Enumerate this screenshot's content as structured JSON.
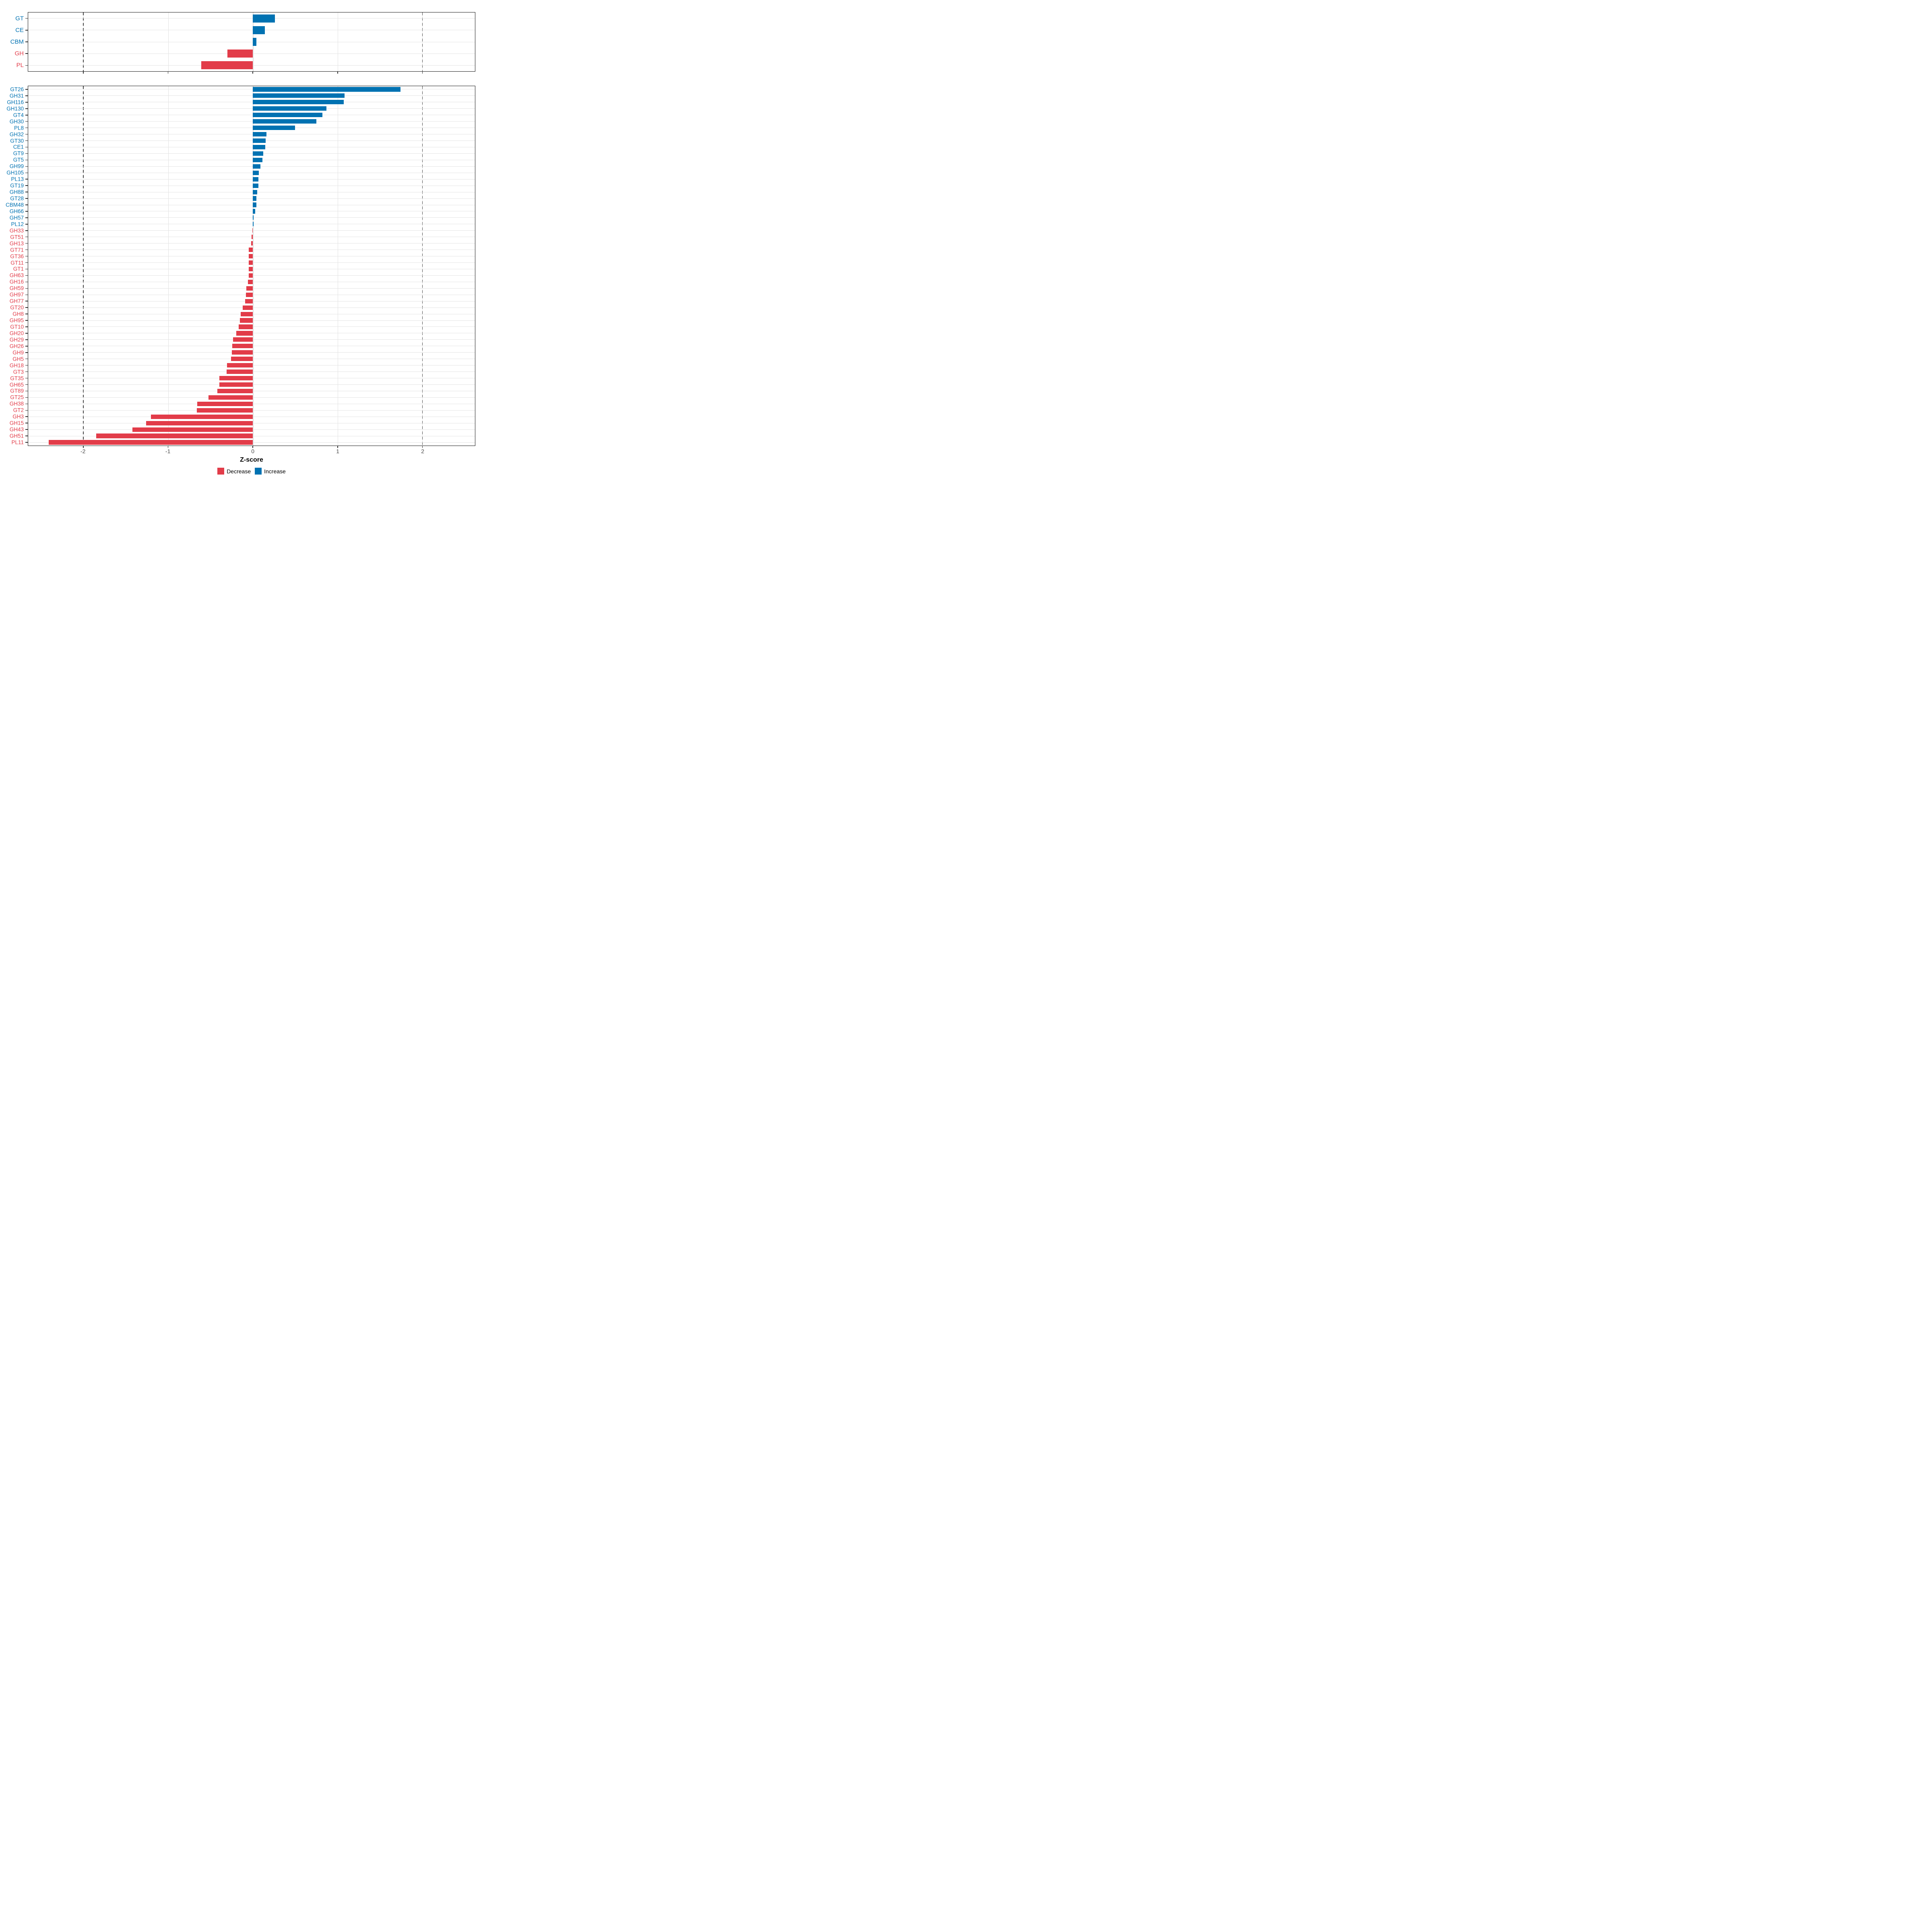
{
  "chart_data": [
    {
      "id": "summary",
      "type": "bar",
      "orientation": "horizontal",
      "title": "",
      "categories": [
        "GT",
        "CE",
        "CBM",
        "GH",
        "PL"
      ],
      "values": [
        0.26,
        0.14,
        0.04,
        -0.3,
        -0.61
      ],
      "grid": true,
      "legend_position": "none"
    },
    {
      "id": "families",
      "type": "bar",
      "orientation": "horizontal",
      "title": "",
      "categories": [
        "GT26",
        "GH31",
        "GH116",
        "GH130",
        "GT4",
        "GH30",
        "PL8",
        "GH32",
        "GT30",
        "CE1",
        "GT9",
        "GT5",
        "GH99",
        "GH105",
        "PL13",
        "GT19",
        "GH88",
        "GT28",
        "CBM48",
        "GH66",
        "GH57",
        "PL12",
        "GH33",
        "GT51",
        "GH13",
        "GT71",
        "GT36",
        "GT11",
        "GT1",
        "GH63",
        "GH16",
        "GH59",
        "GH97",
        "GH77",
        "GT20",
        "GH8",
        "GH95",
        "GT10",
        "GH20",
        "GH29",
        "GH26",
        "GH9",
        "GH5",
        "GH18",
        "GT3",
        "GT35",
        "GH65",
        "GT89",
        "GT25",
        "GH38",
        "GT2",
        "GH3",
        "GH15",
        "GH43",
        "GH51",
        "PL11"
      ],
      "values": [
        1.74,
        1.08,
        1.07,
        0.87,
        0.82,
        0.75,
        0.5,
        0.16,
        0.15,
        0.145,
        0.125,
        0.115,
        0.088,
        0.069,
        0.067,
        0.065,
        0.052,
        0.043,
        0.04,
        0.027,
        0.01,
        0.008,
        -0.004,
        -0.016,
        -0.021,
        -0.048,
        -0.048,
        -0.048,
        -0.049,
        -0.049,
        -0.058,
        -0.076,
        -0.083,
        -0.091,
        -0.119,
        -0.143,
        -0.155,
        -0.167,
        -0.195,
        -0.233,
        -0.245,
        -0.25,
        -0.256,
        -0.304,
        -0.307,
        -0.397,
        -0.397,
        -0.42,
        -0.522,
        -0.658,
        -0.66,
        -1.2,
        -1.26,
        -1.42,
        -1.85,
        -2.41
      ],
      "grid": true,
      "legend_position": "bottom"
    }
  ],
  "xaxis": {
    "label": "Z-score",
    "ticks": [
      "-2",
      "-1",
      "0",
      "1",
      "2"
    ],
    "tick_values": [
      -2,
      -1,
      0,
      1,
      2
    ],
    "range": [
      -2.65,
      2.62
    ],
    "dashed_lines_at": [
      -2,
      2
    ]
  },
  "legend": {
    "items": [
      {
        "label": "Decrease",
        "color": "#E23C49"
      },
      {
        "label": "Increase",
        "color": "#0072B2"
      }
    ]
  },
  "colors": {
    "increase": "#0072B2",
    "decrease": "#E23C49",
    "grid": "#E4E4E4",
    "axis_text": "#4A4A4A",
    "panel_border": "#1A1A1A",
    "dashed_line": "#444444",
    "background": "#FFFFFF"
  }
}
